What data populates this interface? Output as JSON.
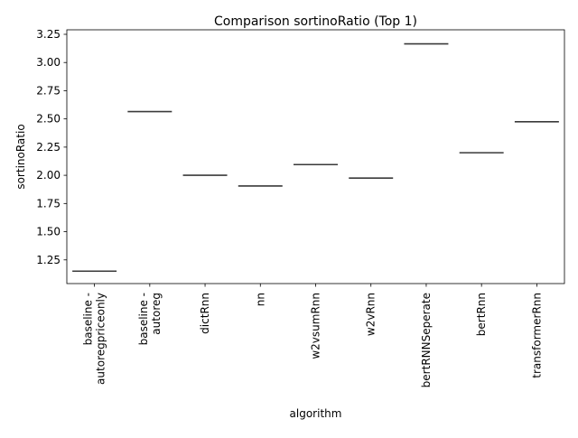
{
  "chart_data": {
    "type": "box",
    "title": "Comparison sortinoRatio (Top 1)",
    "xlabel": "algorithm",
    "ylabel": "sortinoRatio",
    "ylim": [
      1.04,
      3.29
    ],
    "yticks": [
      "1.25",
      "1.50",
      "1.75",
      "2.00",
      "2.25",
      "2.50",
      "2.75",
      "3.00",
      "3.25"
    ],
    "categories": [
      [
        "baseline -",
        "autoregpriceonly"
      ],
      [
        "baseline -",
        "autoreg"
      ],
      [
        "dictRnn"
      ],
      [
        "nn"
      ],
      [
        "w2vsumRnn"
      ],
      [
        "w2vRnn"
      ],
      [
        "bertRNNSeperate"
      ],
      [
        "bertRnn"
      ],
      [
        "transformerRnn"
      ]
    ],
    "values": [
      1.15,
      2.565,
      2.0,
      1.905,
      2.095,
      1.975,
      3.165,
      2.2,
      2.475
    ],
    "grid": false,
    "colors": {
      "median": "#3a3a3a",
      "axis": "#000000"
    }
  }
}
